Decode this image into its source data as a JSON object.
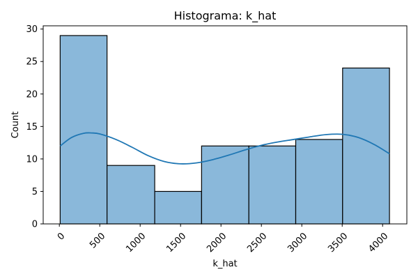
{
  "chart_data": {
    "type": "bar",
    "title": "Histograma: k_hat",
    "xlabel": "k_hat",
    "ylabel": "Count",
    "xlim": [
      -200,
      4300
    ],
    "ylim": [
      0,
      30.5
    ],
    "bin_edges": [
      10,
      590,
      1180,
      1760,
      2345,
      2925,
      3505,
      4085
    ],
    "values": [
      29,
      9,
      5,
      12,
      12,
      13,
      24
    ],
    "x_ticks": [
      0,
      500,
      1000,
      1500,
      2000,
      2500,
      3000,
      3500,
      4000
    ],
    "y_ticks": [
      0,
      5,
      10,
      15,
      20,
      25,
      30
    ],
    "x_tick_rotation": 45,
    "grid": false,
    "kde": {
      "x": [
        10,
        150,
        300,
        400,
        500,
        700,
        900,
        1100,
        1300,
        1500,
        1700,
        1900,
        2100,
        2300,
        2500,
        2700,
        2900,
        3100,
        3300,
        3500,
        3700,
        3900,
        4085
      ],
      "y": [
        12.0,
        13.3,
        13.95,
        14.0,
        13.85,
        13.0,
        11.8,
        10.5,
        9.6,
        9.25,
        9.4,
        9.9,
        10.6,
        11.4,
        12.1,
        12.6,
        13.0,
        13.4,
        13.75,
        13.8,
        13.3,
        12.2,
        10.8
      ]
    },
    "colors": {
      "bar_fill": "#8ab8da",
      "bar_edge": "#000000",
      "kde_line": "#1f77b4"
    }
  }
}
